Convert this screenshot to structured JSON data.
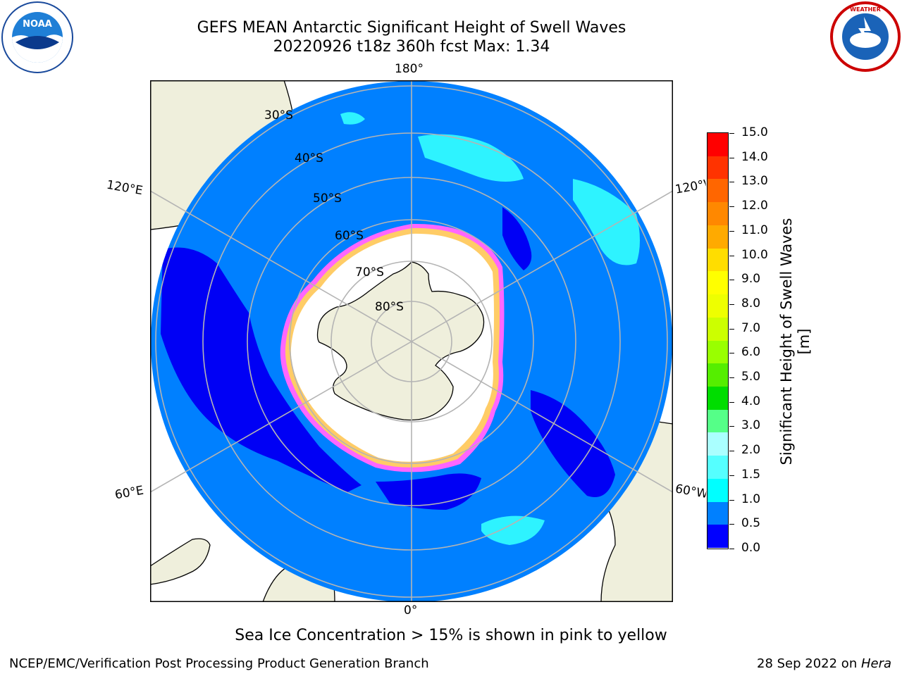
{
  "title": {
    "line1": "GEFS MEAN Antarctic Significant Height of Swell Waves",
    "line2": "20220926 t18z 360h fcst   Max: 1.34"
  },
  "logos": {
    "left": "noaa-logo",
    "right": "nws-logo"
  },
  "map": {
    "projection": "south-polar-stereographic",
    "lon_labels": [
      "180°",
      "120°E",
      "120°W",
      "60°E",
      "60°W",
      "0°"
    ],
    "lat_labels": [
      "30°S",
      "40°S",
      "50°S",
      "60°S",
      "70°S",
      "80°S"
    ],
    "colors": {
      "ocean": "#0080ff",
      "land": "#efefdc",
      "ice": "#ffffff",
      "grid": "#b4b4b4",
      "low_band": "#0000f5"
    }
  },
  "colorbar": {
    "label": "Significant Height of Swell Waves [m]",
    "ticks": [
      "15.0",
      "14.0",
      "13.0",
      "12.0",
      "11.0",
      "10.0",
      "9.0",
      "8.0",
      "7.0",
      "6.0",
      "5.0",
      "4.0",
      "3.0",
      "2.0",
      "1.5",
      "1.0",
      "0.5",
      "0.0"
    ],
    "colors": [
      "#ff0000",
      "#ff3300",
      "#ff6600",
      "#ff8800",
      "#ffaa00",
      "#ffdd00",
      "#ffff00",
      "#eeff00",
      "#ccff00",
      "#99ff00",
      "#55ee00",
      "#00dd00",
      "#55ff88",
      "#aaffff",
      "#55ffff",
      "#00ffff",
      "#0080ff",
      "#0000ff"
    ]
  },
  "subtitle": "Sea Ice Concentration > 15% is shown in pink to yellow",
  "footer": {
    "left": "NCEP/EMC/Verification Post Processing Product Generation Branch",
    "right_prefix": "28 Sep 2022 on ",
    "right_host": "Hera"
  }
}
